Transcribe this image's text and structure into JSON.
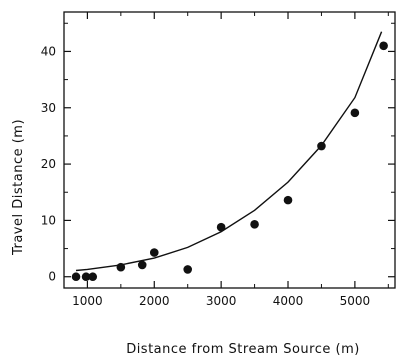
{
  "chart_data": {
    "type": "scatter",
    "xlabel": "Distance from Stream Source (m)",
    "ylabel": "Travel Distance (m)",
    "xlim": [
      650,
      5600
    ],
    "ylim": [
      -2,
      47
    ],
    "xticks_major": [
      1000,
      2000,
      3000,
      4000,
      5000
    ],
    "xticks_minor": [
      1500,
      2500,
      3500,
      4500,
      5500
    ],
    "yticks_major": [
      0,
      10,
      20,
      30,
      40
    ],
    "yticks_minor": [
      5,
      15,
      25,
      35,
      45
    ],
    "x_tick_labels": [
      "1000",
      "2000",
      "3000",
      "4000",
      "5000"
    ],
    "y_tick_labels": [
      "0",
      "10",
      "20",
      "30",
      "40"
    ],
    "grid": false,
    "series": [
      {
        "type": "scatter",
        "points": [
          {
            "x": 830,
            "y": 0
          },
          {
            "x": 980,
            "y": 0
          },
          {
            "x": 1080,
            "y": 0
          },
          {
            "x": 1500,
            "y": 1.7
          },
          {
            "x": 1820,
            "y": 2.1
          },
          {
            "x": 2000,
            "y": 4.3
          },
          {
            "x": 2500,
            "y": 1.3
          },
          {
            "x": 3000,
            "y": 8.8
          },
          {
            "x": 3500,
            "y": 9.3
          },
          {
            "x": 4000,
            "y": 13.6
          },
          {
            "x": 4500,
            "y": 23.2
          },
          {
            "x": 5000,
            "y": 29.1
          },
          {
            "x": 5430,
            "y": 41.0
          }
        ]
      },
      {
        "type": "line",
        "points": [
          {
            "x": 830,
            "y": 1.1
          },
          {
            "x": 1000,
            "y": 1.3
          },
          {
            "x": 1500,
            "y": 2.1
          },
          {
            "x": 2000,
            "y": 3.3
          },
          {
            "x": 2500,
            "y": 5.2
          },
          {
            "x": 3000,
            "y": 8.0
          },
          {
            "x": 3500,
            "y": 11.8
          },
          {
            "x": 4000,
            "y": 16.8
          },
          {
            "x": 4500,
            "y": 23.3
          },
          {
            "x": 5000,
            "y": 31.8
          },
          {
            "x": 5400,
            "y": 43.5
          }
        ]
      }
    ]
  }
}
